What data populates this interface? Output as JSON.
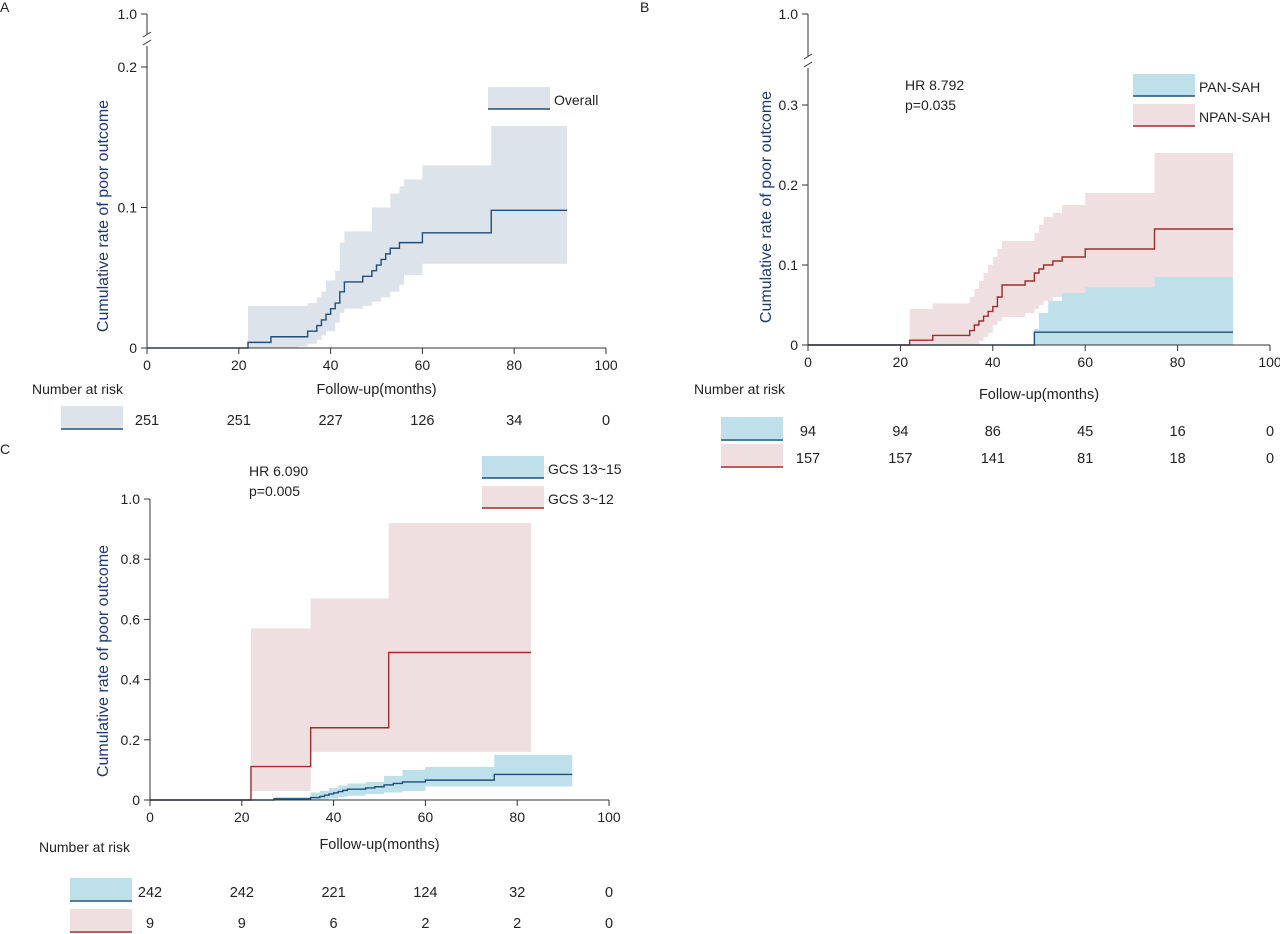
{
  "colors": {
    "axis": "#333333",
    "ylabel": "#1f3a6e",
    "overall_line": "#1f4e79",
    "overall_band": "#dde3ea",
    "blue_line": "#1f4e79",
    "blue_band": "#bde0ea",
    "red_line": "#a02c2c",
    "red_band": "#efdfe0"
  },
  "chart_data": [
    {
      "panel": "A",
      "type": "line",
      "xlabel": "Follow-up(months)",
      "ylabel": "Cumulative rate of poor outcome",
      "xlim": [
        0,
        100
      ],
      "xticks": [
        0,
        20,
        40,
        60,
        80,
        100
      ],
      "ylim": [
        0,
        0.2
      ],
      "yticks": [
        "0",
        "0.1",
        "0.2"
      ],
      "y_break_top_label": "1.0",
      "legend": [
        "Overall"
      ],
      "series": [
        {
          "name": "Overall",
          "step_x": [
            0,
            22,
            27,
            35,
            37,
            38,
            39,
            40,
            41,
            42,
            43,
            47,
            49,
            50,
            51,
            52,
            53,
            55,
            56,
            60,
            66,
            75,
            91.5
          ],
          "step_y": [
            0,
            0.004,
            0.008,
            0.012,
            0.016,
            0.02,
            0.024,
            0.028,
            0.032,
            0.04,
            0.047,
            0.051,
            0.055,
            0.059,
            0.063,
            0.067,
            0.071,
            0.075,
            0.075,
            0.082,
            0.082,
            0.098,
            0.098
          ],
          "ci_x": [
            22,
            33,
            35,
            37,
            38,
            39,
            41,
            42,
            43,
            47,
            49,
            51,
            53,
            55,
            56,
            60,
            75,
            91.5
          ],
          "ci_lower": [
            0,
            0,
            0.001,
            0.003,
            0.006,
            0.009,
            0.012,
            0.018,
            0.025,
            0.028,
            0.03,
            0.033,
            0.036,
            0.04,
            0.045,
            0.052,
            0.06,
            0.06
          ],
          "ci_upper": [
            0.03,
            0.03,
            0.032,
            0.036,
            0.04,
            0.048,
            0.055,
            0.075,
            0.083,
            0.083,
            0.1,
            0.1,
            0.11,
            0.115,
            0.12,
            0.13,
            0.158,
            0.158
          ]
        }
      ],
      "risk_label": "Number at risk",
      "risk_times": [
        0,
        20,
        40,
        60,
        80,
        100
      ],
      "risk": [
        {
          "group": "Overall",
          "values": [
            "251",
            "251",
            "227",
            "126",
            "34",
            "0"
          ]
        }
      ]
    },
    {
      "panel": "B",
      "type": "line",
      "xlabel": "Follow-up(months)",
      "ylabel": "Cumulative rate of poor outcome",
      "xlim": [
        0,
        100
      ],
      "xticks": [
        0,
        20,
        40,
        60,
        80,
        100
      ],
      "ylim": [
        0,
        0.3
      ],
      "yticks": [
        "0",
        "0.1",
        "0.2",
        "0.3"
      ],
      "y_break_top_label": "1.0",
      "annotation": [
        "HR 8.792",
        "p=0.035"
      ],
      "legend": [
        "PAN-SAH",
        "NPAN-SAH"
      ],
      "series": [
        {
          "name": "PAN-SAH",
          "step_x": [
            0,
            49,
            92
          ],
          "step_y": [
            0,
            0.016,
            0.016
          ],
          "ci_x": [
            49,
            50,
            52,
            55,
            60,
            75,
            92
          ],
          "ci_lower": [
            0,
            0,
            0,
            0,
            0,
            0,
            0
          ],
          "ci_upper": [
            0.02,
            0.04,
            0.055,
            0.065,
            0.072,
            0.085,
            0.085
          ]
        },
        {
          "name": "NPAN-SAH",
          "step_x": [
            0,
            22,
            27,
            35,
            36,
            37,
            38,
            39,
            40,
            41,
            42,
            47,
            49,
            50,
            51,
            53,
            55,
            60,
            75,
            92
          ],
          "step_y": [
            0,
            0.006,
            0.012,
            0.018,
            0.025,
            0.03,
            0.036,
            0.042,
            0.048,
            0.06,
            0.075,
            0.08,
            0.09,
            0.095,
            0.1,
            0.105,
            0.11,
            0.12,
            0.145,
            0.145
          ],
          "ci_x": [
            22,
            27,
            35,
            36,
            37,
            38,
            39,
            40,
            41,
            42,
            47,
            49,
            50,
            51,
            53,
            55,
            60,
            75,
            92
          ],
          "ci_lower": [
            0,
            0,
            0,
            0,
            0,
            0.005,
            0.01,
            0.015,
            0.025,
            0.03,
            0.035,
            0.04,
            0.045,
            0.05,
            0.055,
            0.06,
            0.065,
            0.07,
            0.07
          ],
          "ci_upper": [
            0.045,
            0.052,
            0.06,
            0.07,
            0.08,
            0.09,
            0.1,
            0.11,
            0.12,
            0.13,
            0.13,
            0.14,
            0.15,
            0.16,
            0.165,
            0.175,
            0.19,
            0.24,
            0.24
          ]
        }
      ],
      "risk_label": "Number at risk",
      "risk_times": [
        0,
        20,
        40,
        60,
        80,
        100
      ],
      "risk": [
        {
          "group": "PAN-SAH",
          "values": [
            "94",
            "94",
            "86",
            "45",
            "16",
            "0"
          ]
        },
        {
          "group": "NPAN-SAH",
          "values": [
            "157",
            "157",
            "141",
            "81",
            "18",
            "0"
          ]
        }
      ]
    },
    {
      "panel": "C",
      "type": "line",
      "xlabel": "Follow-up(months)",
      "ylabel": "Cumulative rate of poor outcome",
      "xlim": [
        0,
        100
      ],
      "xticks": [
        0,
        20,
        40,
        60,
        80,
        100
      ],
      "ylim": [
        0,
        1.0
      ],
      "yticks": [
        "0",
        "0.2",
        "0.4",
        "0.6",
        "0.8",
        "1.0"
      ],
      "annotation": [
        "HR 6.090",
        "p=0.005"
      ],
      "legend": [
        "GCS 13~15",
        "GCS 3~12"
      ],
      "series": [
        {
          "name": "GCS 13~15",
          "step_x": [
            0,
            27,
            35,
            37,
            38,
            39,
            40,
            41,
            42,
            43,
            47,
            49,
            51,
            53,
            55,
            60,
            75,
            92
          ],
          "step_y": [
            0,
            0.004,
            0.008,
            0.012,
            0.016,
            0.02,
            0.024,
            0.028,
            0.032,
            0.036,
            0.04,
            0.044,
            0.05,
            0.055,
            0.06,
            0.066,
            0.085,
            0.085
          ],
          "ci_x": [
            27,
            35,
            37,
            39,
            41,
            43,
            47,
            51,
            55,
            60,
            75,
            92
          ],
          "ci_lower": [
            0,
            0,
            0,
            0.002,
            0.005,
            0.01,
            0.014,
            0.02,
            0.025,
            0.03,
            0.045,
            0.045
          ],
          "ci_upper": [
            0.01,
            0.025,
            0.03,
            0.04,
            0.048,
            0.055,
            0.06,
            0.08,
            0.1,
            0.11,
            0.15,
            0.15
          ]
        },
        {
          "name": "GCS 3~12",
          "step_x": [
            0,
            22,
            35,
            52,
            83
          ],
          "step_y": [
            0,
            0.111,
            0.24,
            0.49,
            0.49
          ],
          "ci_x": [
            22,
            35,
            52,
            83
          ],
          "ci_lower": [
            0,
            0.03,
            0.16,
            0.16
          ],
          "ci_upper": [
            0.57,
            0.67,
            0.92,
            0.92
          ]
        }
      ],
      "risk_label": "Number at risk",
      "risk_times": [
        0,
        20,
        40,
        60,
        80,
        100
      ],
      "risk": [
        {
          "group": "GCS 13~15",
          "values": [
            "242",
            "242",
            "221",
            "124",
            "32",
            "0"
          ]
        },
        {
          "group": "GCS 3~12",
          "values": [
            "9",
            "9",
            "6",
            "2",
            "2",
            "0"
          ]
        }
      ]
    }
  ]
}
